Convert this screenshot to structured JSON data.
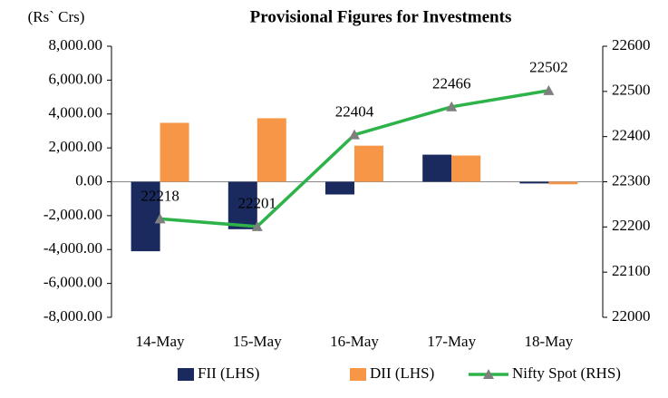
{
  "chart_data": {
    "type": "bar_line",
    "title": "Provisional Figures for Investments",
    "y_label": "(Rs` Crs)",
    "categories": [
      "14-May",
      "15-May",
      "16-May",
      "17-May",
      "18-May"
    ],
    "series": [
      {
        "name": "FII (LHS)",
        "type": "bar",
        "color": "#1b2a5e",
        "values": [
          -4100,
          -2800,
          -750,
          1600,
          -100
        ]
      },
      {
        "name": "DII (LHS)",
        "type": "bar",
        "color": "#f79646",
        "values": [
          3480,
          3750,
          2130,
          1550,
          -150
        ]
      },
      {
        "name": "Nifty Spot (RHS)",
        "type": "line",
        "axis": "y2",
        "color": "#2db34a",
        "values": [
          22218,
          22201,
          22404,
          22466,
          22502
        ]
      }
    ],
    "ylim": [
      -8000,
      8000
    ],
    "yticks": [
      {
        "value": -8000,
        "label": "-8,000.00"
      },
      {
        "value": -6000,
        "label": "-6,000.00"
      },
      {
        "value": -4000,
        "label": "-4,000.00"
      },
      {
        "value": -2000,
        "label": "-2,000.00"
      },
      {
        "value": 0,
        "label": "0.00"
      },
      {
        "value": 2000,
        "label": "2,000.00"
      },
      {
        "value": 4000,
        "label": "4,000.00"
      },
      {
        "value": 6000,
        "label": "6,000.00"
      },
      {
        "value": 8000,
        "label": "8,000.00"
      }
    ],
    "y2lim": [
      22000,
      22600
    ],
    "y2ticks": [
      22000,
      22100,
      22200,
      22300,
      22400,
      22500,
      22600
    ],
    "legend": "bottom"
  }
}
